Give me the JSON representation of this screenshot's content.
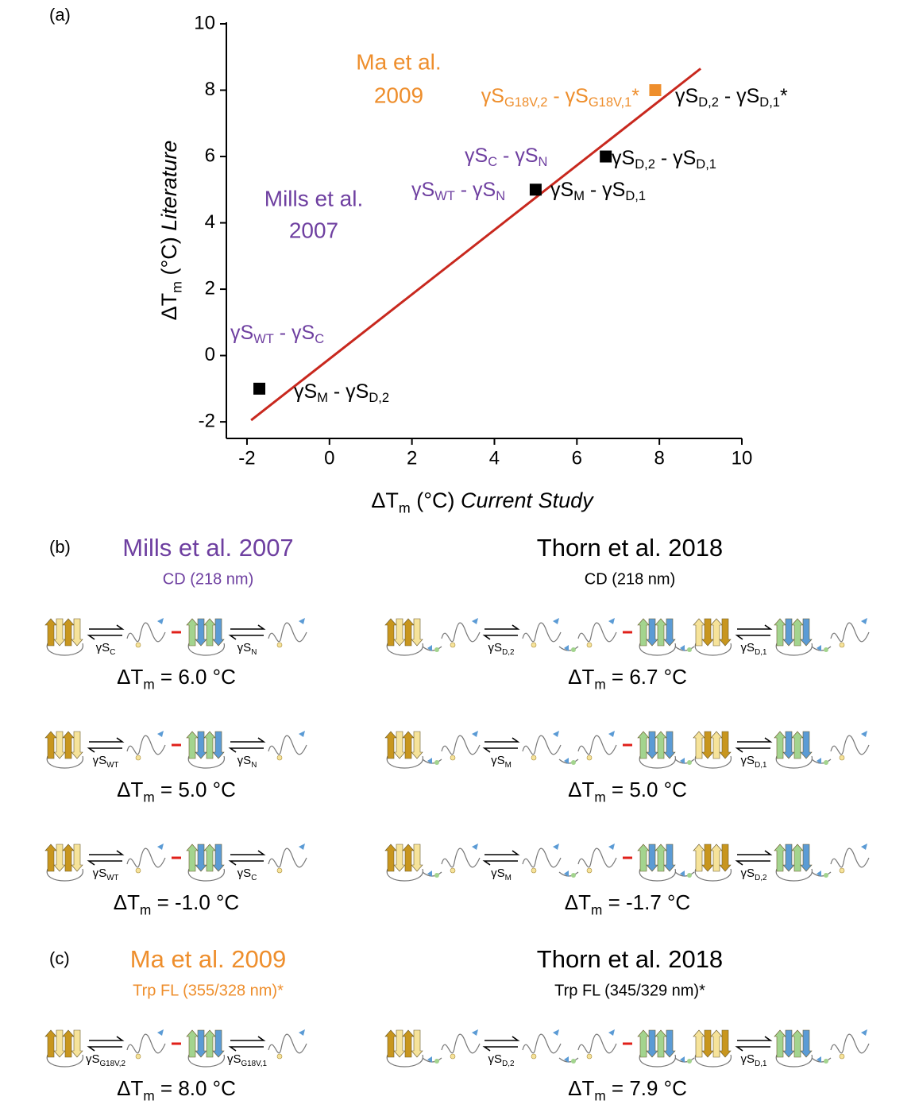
{
  "chart_data": {
    "type": "scatter",
    "panel_label": "(a)",
    "xlabel": {
      "parts": [
        "ΔT",
        "m",
        " (°C) "
      ],
      "emphasis": "Current Study"
    },
    "ylabel": {
      "parts": [
        "ΔT",
        "m",
        " (°C) "
      ],
      "emphasis": "Literature"
    },
    "xlim": [
      -2.5,
      10
    ],
    "ylim": [
      -2.5,
      10
    ],
    "xticks": [
      -2,
      0,
      2,
      4,
      6,
      8,
      10
    ],
    "yticks": [
      -2,
      0,
      2,
      4,
      6,
      8,
      10
    ],
    "series": [
      {
        "color": "#000000",
        "x": [
          -1.7,
          5,
          6.7
        ],
        "values": [
          -1,
          5,
          6
        ]
      },
      {
        "color": "#ee8e2c",
        "x": [
          7.9
        ],
        "values": [
          8
        ]
      }
    ],
    "fit": {
      "color": "#c8281e",
      "x": [
        -1.9,
        9
      ],
      "values": [
        -1.95,
        8.65
      ]
    },
    "sources": [
      {
        "lines": [
          "Ma et al.",
          "2009"
        ],
        "color": "#ee8e2c"
      },
      {
        "lines": [
          "Mills et al.",
          "2007"
        ],
        "color": "#6e3fa0"
      }
    ],
    "annotations": [
      {
        "parts": [
          "γS",
          "G18V,2",
          " - γS",
          "G18V,1",
          "*"
        ],
        "color": "#ee8e2c"
      },
      {
        "parts": [
          "γS",
          "D,2",
          " - γS",
          "D,1",
          "*"
        ],
        "color": "#000000"
      },
      {
        "parts": [
          "γS",
          "C",
          " - γS",
          "N"
        ],
        "color": "#6e3fa0"
      },
      {
        "parts": [
          "γS",
          "D,2",
          " - γS",
          "D,1"
        ],
        "color": "#000000"
      },
      {
        "parts": [
          "γS",
          "WT",
          " - γS",
          "N"
        ],
        "color": "#6e3fa0"
      },
      {
        "parts": [
          "γS",
          "M",
          " - γS",
          "D,1"
        ],
        "color": "#000000"
      },
      {
        "parts": [
          "γS",
          "WT",
          " - γS",
          "C"
        ],
        "color": "#6e3fa0"
      },
      {
        "parts": [
          "γS",
          "M",
          " - γS",
          "D,2"
        ],
        "color": "#000000"
      }
    ]
  },
  "panels": [
    {
      "label": "(b)",
      "columns": [
        {
          "source": "Mills et al. 2007",
          "method": "CD (218 nm)",
          "color": "#6e3fa0",
          "rows": [
            {
              "reactions": [
                [
                  "γS",
                  "C"
                ],
                [
                  "γS",
                  "N"
                ]
              ],
              "result": [
                "ΔT",
                "m",
                " = 6.0 °C"
              ]
            },
            {
              "reactions": [
                [
                  "γS",
                  "WT"
                ],
                [
                  "γS",
                  "N"
                ]
              ],
              "result": [
                "ΔT",
                "m",
                " = 5.0 °C"
              ]
            },
            {
              "reactions": [
                [
                  "γS",
                  "WT"
                ],
                [
                  "γS",
                  "C"
                ]
              ],
              "result": [
                "ΔT",
                "m",
                " = -1.0 °C"
              ]
            }
          ]
        },
        {
          "source": "Thorn et al. 2018",
          "method": "CD (218 nm)",
          "color": "#000000",
          "rows": [
            {
              "reactions": [
                [
                  "γS",
                  "D,2"
                ],
                [
                  "γS",
                  "D,1"
                ]
              ],
              "result": [
                "ΔT",
                "m",
                " = 6.7 °C"
              ]
            },
            {
              "reactions": [
                [
                  "γS",
                  "M"
                ],
                [
                  "γS",
                  "D,1"
                ]
              ],
              "result": [
                "ΔT",
                "m",
                " = 5.0 °C"
              ]
            },
            {
              "reactions": [
                [
                  "γS",
                  "M"
                ],
                [
                  "γS",
                  "D,2"
                ]
              ],
              "result": [
                "ΔT",
                "m",
                " = -1.7 °C"
              ]
            }
          ]
        }
      ]
    },
    {
      "label": "(c)",
      "columns": [
        {
          "source": "Ma et al. 2009",
          "method": "Trp FL (355/328 nm)*",
          "color": "#ee8e2c",
          "rows": [
            {
              "reactions": [
                [
                  "γS",
                  "G18V,2"
                ],
                [
                  "γS",
                  "G18V,1"
                ]
              ],
              "result": [
                "ΔT",
                "m",
                " = 8.0 °C"
              ]
            }
          ]
        },
        {
          "source": "Thorn et al. 2018",
          "method": "Trp FL (345/329 nm)*",
          "color": "#000000",
          "rows": [
            {
              "reactions": [
                [
                  "γS",
                  "D,2"
                ],
                [
                  "γS",
                  "D,1"
                ]
              ],
              "result": [
                "ΔT",
                "m",
                " = 7.9 °C"
              ]
            }
          ]
        }
      ]
    }
  ]
}
